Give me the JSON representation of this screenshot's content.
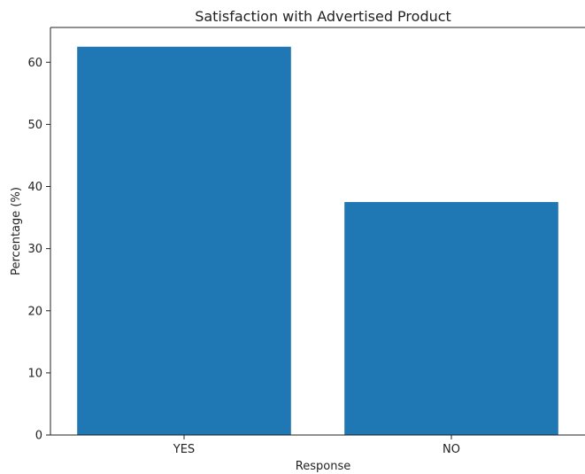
{
  "chart_data": {
    "type": "bar",
    "title": "Satisfaction with Advertised Product",
    "xlabel": "Response",
    "ylabel": "Percentage (%)",
    "categories": [
      "YES",
      "NO"
    ],
    "values": [
      62.5,
      37.5
    ],
    "ylim": [
      0,
      65.6
    ],
    "yticks": [
      0,
      10,
      20,
      30,
      40,
      50,
      60
    ],
    "bar_color": "#1f77b4",
    "grid": false,
    "legend": "none"
  }
}
